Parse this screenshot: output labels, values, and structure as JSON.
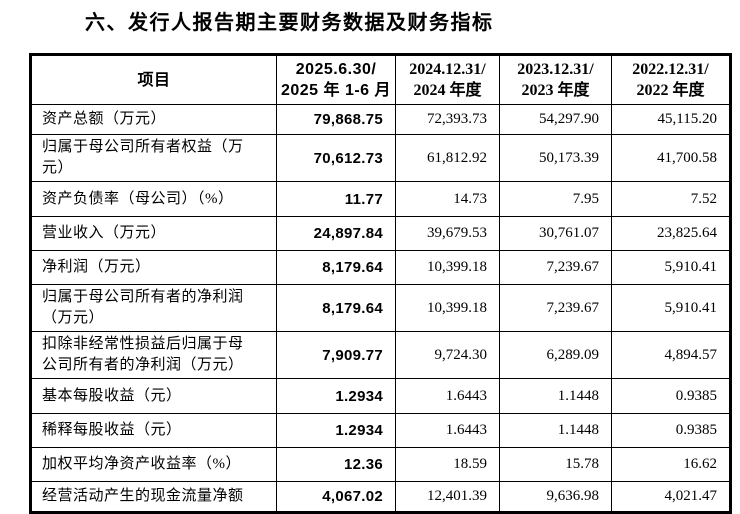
{
  "title": "六、发行人报告期主要财务数据及财务指标",
  "table": {
    "columns": [
      {
        "line1": "项目",
        "line2": ""
      },
      {
        "line1": "2025.6.30/",
        "line2": "2025 年 1-6 月"
      },
      {
        "line1": "2024.12.31/",
        "line2": "2024 年度"
      },
      {
        "line1": "2023.12.31/",
        "line2": "2023 年度"
      },
      {
        "line1": "2022.12.31/",
        "line2": "2022 年度"
      }
    ],
    "rows": [
      {
        "label": "资产总额（万元）",
        "values": [
          "79,868.75",
          "72,393.73",
          "54,297.90",
          "45,115.20"
        ]
      },
      {
        "label": "归属于母公司所有者权益（万元）",
        "values": [
          "70,612.73",
          "61,812.92",
          "50,173.39",
          "41,700.58"
        ]
      },
      {
        "label": "资产负债率（母公司）（%）",
        "values": [
          "11.77",
          "14.73",
          "7.95",
          "7.52"
        ]
      },
      {
        "label": "营业收入（万元）",
        "values": [
          "24,897.84",
          "39,679.53",
          "30,761.07",
          "23,825.64"
        ]
      },
      {
        "label": "净利润（万元）",
        "values": [
          "8,179.64",
          "10,399.18",
          "7,239.67",
          "5,910.41"
        ]
      },
      {
        "label": "归属于母公司所有者的净利润（万元）",
        "values": [
          "8,179.64",
          "10,399.18",
          "7,239.67",
          "5,910.41"
        ]
      },
      {
        "label": "扣除非经常性损益后归属于母公司所有者的净利润（万元）",
        "values": [
          "7,909.77",
          "9,724.30",
          "6,289.09",
          "4,894.57"
        ]
      },
      {
        "label": "基本每股收益（元）",
        "values": [
          "1.2934",
          "1.6443",
          "1.1448",
          "0.9385"
        ]
      },
      {
        "label": "稀释每股收益（元）",
        "values": [
          "1.2934",
          "1.6443",
          "1.1448",
          "0.9385"
        ]
      },
      {
        "label": "加权平均净资产收益率（%）",
        "values": [
          "12.36",
          "18.59",
          "15.78",
          "16.62"
        ]
      },
      {
        "label": "经营活动产生的现金流量净额",
        "values": [
          "4,067.02",
          "12,401.39",
          "9,636.98",
          "4,021.47"
        ]
      }
    ]
  }
}
